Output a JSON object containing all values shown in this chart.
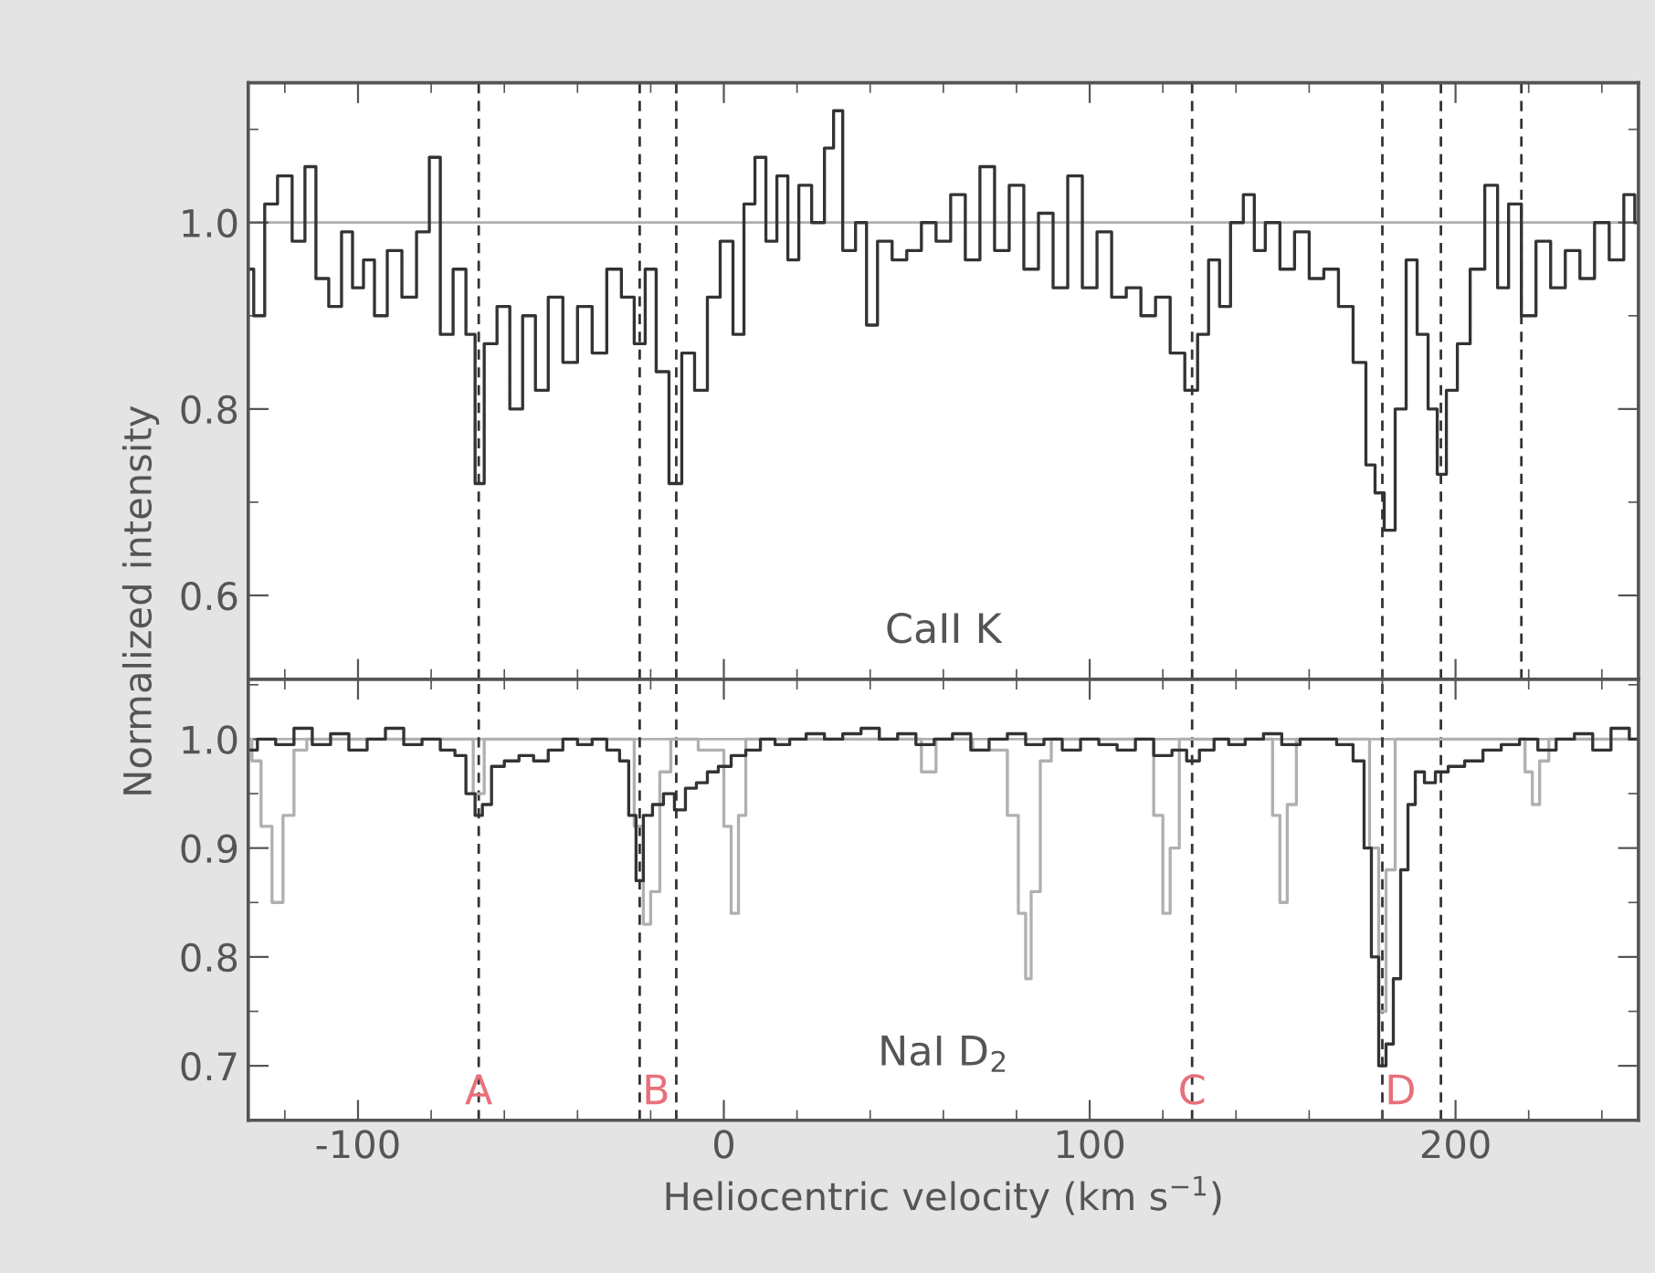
{
  "chart_data": [
    {
      "type": "step",
      "xlim": [
        -130,
        250
      ],
      "ylim": [
        0.51,
        1.15
      ],
      "xticks": [
        -100,
        0,
        100,
        200
      ],
      "yticks": [
        0.6,
        0.8,
        {
          "value": 1.0,
          "label": "1.0"
        }
      ],
      "tick_labels": "y",
      "grid": false,
      "legend": false,
      "ylabel": "Normalized intensity",
      "annotations": [
        "CaII K"
      ],
      "ref_lines": [
        {
          "axis": "y",
          "value": 1.0,
          "color": "#b0b0b0",
          "line_style": "solid"
        },
        {
          "axis": "x",
          "value": -67,
          "color": "#333333",
          "line_style": "dashed"
        },
        {
          "axis": "x",
          "value": -23,
          "color": "#333333",
          "line_style": "dashed"
        },
        {
          "axis": "x",
          "value": -13,
          "color": "#333333",
          "line_style": "dashed"
        },
        {
          "axis": "x",
          "value": 128,
          "color": "#333333",
          "line_style": "dashed"
        },
        {
          "axis": "x",
          "value": 180,
          "color": "#333333",
          "line_style": "dashed"
        },
        {
          "axis": "x",
          "value": 196,
          "color": "#333333",
          "line_style": "dashed"
        },
        {
          "axis": "x",
          "value": 218,
          "color": "#333333",
          "line_style": "dashed"
        }
      ],
      "series": [
        {
          "color": "#333333",
          "x": [
            -130,
            -127,
            -124,
            -120,
            -116,
            -113,
            -110,
            -106,
            -103,
            -100,
            -97,
            -94,
            -90,
            -86,
            -82,
            -79,
            -76,
            -72,
            -69,
            -67,
            -64,
            -60,
            -57,
            -53,
            -50,
            -46,
            -42,
            -38,
            -34,
            -30,
            -26,
            -23,
            -20,
            -17,
            -13,
            -10,
            -6,
            -3,
            1,
            4,
            7,
            10,
            13,
            16,
            19,
            22,
            26,
            29,
            31,
            34,
            38,
            40,
            44,
            48,
            52,
            56,
            60,
            64,
            68,
            72,
            76,
            80,
            84,
            88,
            92,
            96,
            100,
            104,
            108,
            112,
            116,
            120,
            124,
            128,
            131,
            134,
            137,
            140,
            144,
            146,
            150,
            154,
            158,
            162,
            166,
            170,
            174,
            177,
            179,
            182,
            185,
            188,
            191,
            194,
            196,
            199,
            202,
            206,
            210,
            213,
            216,
            220,
            224,
            228,
            232,
            236,
            240,
            244,
            248,
            250
          ],
          "values": [
            0.95,
            0.9,
            1.02,
            1.05,
            0.98,
            1.06,
            0.94,
            0.91,
            0.99,
            0.93,
            0.96,
            0.9,
            0.97,
            0.92,
            0.99,
            1.07,
            0.88,
            0.95,
            0.88,
            0.72,
            0.87,
            0.91,
            0.8,
            0.9,
            0.82,
            0.92,
            0.85,
            0.91,
            0.86,
            0.95,
            0.92,
            0.87,
            0.95,
            0.84,
            0.72,
            0.86,
            0.82,
            0.92,
            0.98,
            0.88,
            1.02,
            1.07,
            0.98,
            1.05,
            0.96,
            1.04,
            1.0,
            1.08,
            1.12,
            0.97,
            1.0,
            0.89,
            0.98,
            0.96,
            0.97,
            1.0,
            0.98,
            1.03,
            0.96,
            1.06,
            0.97,
            1.04,
            0.95,
            1.01,
            0.93,
            1.05,
            0.93,
            0.99,
            0.92,
            0.93,
            0.9,
            0.92,
            0.86,
            0.82,
            0.88,
            0.96,
            0.91,
            1.0,
            1.03,
            0.97,
            1.0,
            0.95,
            0.99,
            0.94,
            0.95,
            0.91,
            0.85,
            0.74,
            0.71,
            0.67,
            0.8,
            0.96,
            0.88,
            0.8,
            0.73,
            0.82,
            0.87,
            0.95,
            1.04,
            0.93,
            1.02,
            0.9,
            0.98,
            0.93,
            0.97,
            0.94,
            1.0,
            0.96,
            1.03,
            1.0
          ]
        }
      ]
    },
    {
      "type": "step",
      "xlim": [
        -130,
        250
      ],
      "ylim": [
        0.65,
        1.055
      ],
      "xticks": [
        -100,
        0,
        100,
        200
      ],
      "yticks": [
        0.7,
        0.8,
        0.9,
        {
          "value": 1.0,
          "label": "1.0"
        }
      ],
      "grid": false,
      "legend": false,
      "xlabel": "Heliocentric velocity (km s$^{−1}$)",
      "annotations": [
        "NaI D$_{2}$"
      ],
      "ref_lines": [
        {
          "axis": "y",
          "value": 1.0,
          "color": "#b0b0b0",
          "line_style": "solid"
        },
        {
          "axis": "x",
          "value": -67,
          "color": "#333333",
          "line_style": "dashed",
          "label": "A"
        },
        {
          "axis": "x",
          "value": -23,
          "color": "#333333",
          "line_style": "dashed",
          "label": "B"
        },
        {
          "axis": "x",
          "value": -13,
          "color": "#333333",
          "line_style": "dashed"
        },
        {
          "axis": "x",
          "value": 128,
          "color": "#333333",
          "line_style": "dashed",
          "label": "C"
        },
        {
          "axis": "x",
          "value": 180,
          "color": "#333333",
          "line_style": "dashed",
          "label": "D"
        },
        {
          "axis": "x",
          "value": 196,
          "color": "#333333",
          "line_style": "dashed"
        }
      ],
      "series": [
        {
          "color": "#b0b0b0",
          "x": [
            -130,
            -128,
            -125,
            -122,
            -119,
            -116,
            -112,
            -70,
            -67,
            -64,
            -26,
            -23,
            -21,
            -19,
            -16,
            -13,
            -1,
            1,
            3,
            5,
            7,
            52,
            56,
            60,
            76,
            79,
            82,
            83,
            85,
            88,
            91,
            116,
            119,
            121,
            123,
            126,
            149,
            151,
            153,
            155,
            158,
            175,
            178,
            180,
            182,
            185,
            218,
            220,
            222,
            224,
            227,
            250
          ],
          "values": [
            1.0,
            0.98,
            0.92,
            0.85,
            0.93,
            0.99,
            1.0,
            1.0,
            0.95,
            1.0,
            1.0,
            0.92,
            0.83,
            0.86,
            0.97,
            1.0,
            0.99,
            0.92,
            0.84,
            0.93,
            1.0,
            1.0,
            0.97,
            1.0,
            0.99,
            0.93,
            0.84,
            0.78,
            0.86,
            0.98,
            1.0,
            1.0,
            0.93,
            0.84,
            0.9,
            1.0,
            1.0,
            0.93,
            0.85,
            0.94,
            1.0,
            1.0,
            0.9,
            0.75,
            0.88,
            1.0,
            1.0,
            0.97,
            0.94,
            0.98,
            1.0,
            1.0
          ]
        },
        {
          "color": "#333333",
          "x": [
            -130,
            -125,
            -120,
            -115,
            -110,
            -105,
            -100,
            -95,
            -90,
            -85,
            -80,
            -75,
            -72,
            -69,
            -67,
            -65,
            -62,
            -58,
            -54,
            -50,
            -46,
            -42,
            -38,
            -34,
            -30,
            -27,
            -25,
            -23,
            -21,
            -18,
            -15,
            -12,
            -9,
            -6,
            -3,
            0,
            4,
            8,
            12,
            16,
            20,
            25,
            30,
            35,
            40,
            45,
            50,
            55,
            60,
            65,
            70,
            75,
            80,
            85,
            90,
            95,
            100,
            105,
            110,
            115,
            120,
            125,
            128,
            132,
            136,
            140,
            145,
            150,
            155,
            160,
            165,
            170,
            174,
            176,
            178,
            180,
            182,
            184,
            186,
            188,
            190,
            193,
            196,
            200,
            205,
            210,
            215,
            220,
            225,
            230,
            235,
            240,
            245,
            250
          ],
          "values": [
            0.99,
            1.0,
            0.995,
            1.01,
            0.995,
            1.005,
            0.99,
            1.0,
            1.01,
            0.995,
            1.0,
            0.99,
            0.985,
            0.95,
            0.93,
            0.94,
            0.975,
            0.98,
            0.985,
            0.98,
            0.99,
            1.0,
            0.995,
            1.0,
            0.99,
            0.98,
            0.93,
            0.87,
            0.93,
            0.94,
            0.95,
            0.935,
            0.955,
            0.96,
            0.97,
            0.975,
            0.985,
            0.99,
            1.0,
            0.995,
            1.0,
            1.005,
            1.0,
            1.005,
            1.01,
            1.0,
            1.005,
            0.995,
            1.0,
            1.005,
            0.99,
            1.0,
            1.005,
            0.995,
            1.0,
            0.99,
            1.0,
            0.995,
            0.99,
            1.0,
            0.985,
            0.99,
            0.98,
            0.99,
            1.0,
            0.995,
            1.0,
            1.005,
            0.995,
            1.0,
            1.0,
            0.995,
            0.98,
            0.9,
            0.8,
            0.7,
            0.72,
            0.78,
            0.88,
            0.94,
            0.97,
            0.96,
            0.97,
            0.975,
            0.98,
            0.99,
            0.995,
            1.0,
            0.99,
            1.0,
            1.005,
            0.99,
            1.01,
            1.0
          ]
        }
      ]
    }
  ]
}
